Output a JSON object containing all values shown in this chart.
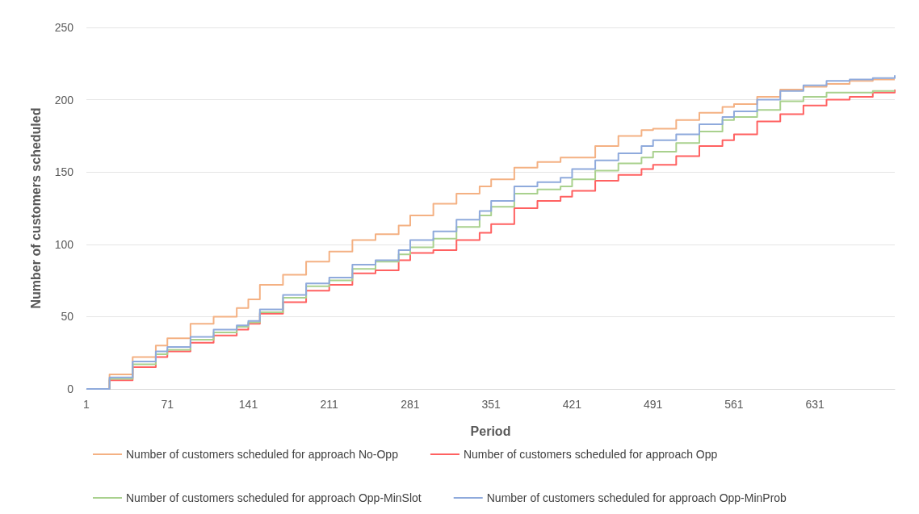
{
  "chart_data": {
    "type": "step",
    "xlabel": "Period",
    "ylabel": "Number of customers scheduled",
    "x": [
      1,
      21,
      41,
      61,
      71,
      91,
      111,
      131,
      141,
      151,
      171,
      191,
      211,
      231,
      251,
      271,
      281,
      301,
      321,
      341,
      351,
      371,
      391,
      411,
      421,
      441,
      461,
      481,
      491,
      511,
      531,
      551,
      561,
      581,
      601,
      621,
      641,
      661,
      681,
      700
    ],
    "series": [
      {
        "name": "Number of customers scheduled for approach No-Opp",
        "color": "#f4b183",
        "values": [
          0,
          10,
          22,
          30,
          35,
          45,
          50,
          56,
          62,
          72,
          79,
          88,
          95,
          103,
          107,
          113,
          120,
          128,
          135,
          140,
          145,
          153,
          157,
          160,
          160,
          168,
          175,
          179,
          180,
          186,
          191,
          195,
          197,
          202,
          207,
          209,
          211,
          213,
          214,
          214
        ]
      },
      {
        "name": "Number of customers scheduled for approach Opp",
        "color": "#ff6161",
        "values": [
          0,
          6,
          15,
          22,
          26,
          32,
          37,
          41,
          45,
          52,
          60,
          68,
          72,
          80,
          82,
          89,
          94,
          96,
          103,
          108,
          114,
          125,
          130,
          133,
          137,
          144,
          148,
          152,
          155,
          161,
          168,
          172,
          176,
          185,
          190,
          196,
          200,
          202,
          205,
          207
        ]
      },
      {
        "name": "Number of customers scheduled for approach Opp-MinSlot",
        "color": "#a9d18e",
        "values": [
          0,
          7,
          17,
          24,
          27,
          34,
          39,
          43,
          46,
          53,
          63,
          71,
          75,
          83,
          88,
          93,
          98,
          104,
          112,
          120,
          126,
          135,
          138,
          140,
          145,
          151,
          156,
          160,
          164,
          170,
          178,
          186,
          188,
          193,
          199,
          202,
          205,
          205,
          206,
          206
        ]
      },
      {
        "name": "Number of customers scheduled for approach Opp-MinProb",
        "color": "#8faadc",
        "values": [
          0,
          8,
          19,
          26,
          29,
          36,
          41,
          44,
          47,
          55,
          65,
          73,
          77,
          86,
          89,
          96,
          103,
          109,
          117,
          123,
          130,
          140,
          143,
          146,
          152,
          158,
          163,
          168,
          172,
          176,
          183,
          188,
          192,
          200,
          206,
          210,
          213,
          214,
          215,
          217
        ]
      }
    ],
    "xlim": [
      1,
      700
    ],
    "xticks": [
      1,
      71,
      141,
      211,
      281,
      351,
      421,
      491,
      561,
      631
    ],
    "ylim": [
      0,
      250
    ],
    "yticks": [
      0,
      50,
      100,
      150,
      200,
      250
    ],
    "grid": "y",
    "legend": "bottom",
    "marker": "none",
    "line_style": "solid"
  }
}
